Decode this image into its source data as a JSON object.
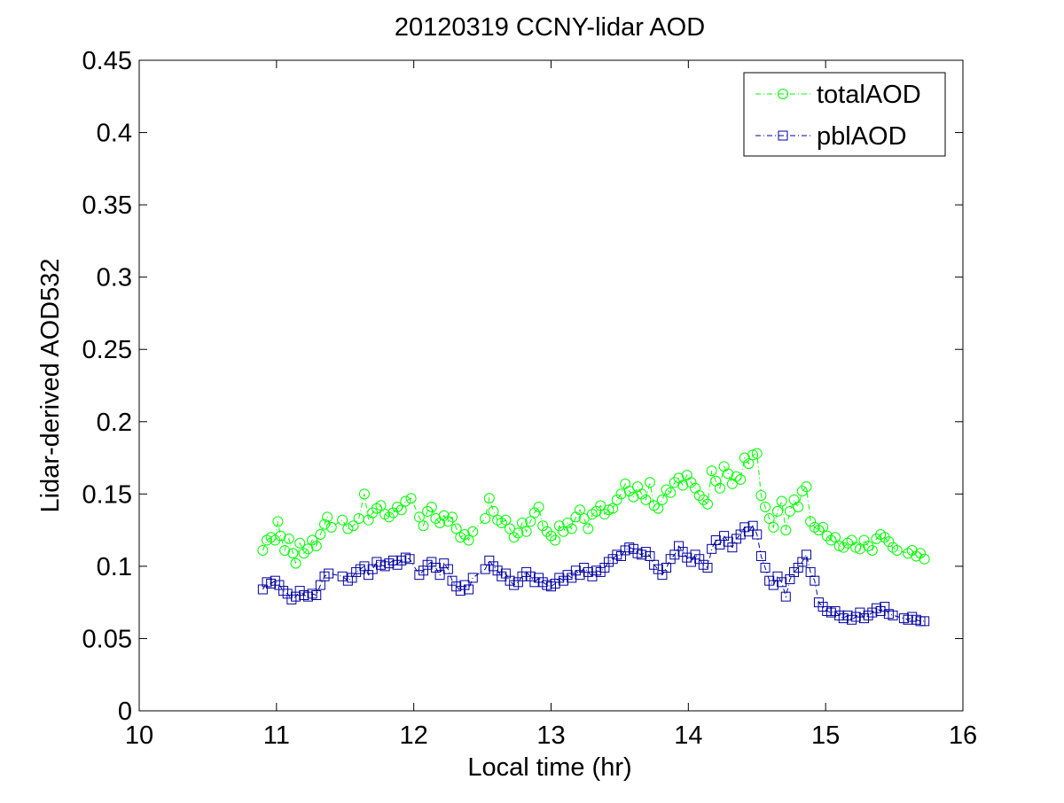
{
  "chart_data": {
    "type": "line",
    "title": "20120319 CCNY-lidar AOD",
    "xlabel": "Local time (hr)",
    "ylabel": "Lidar-derived AOD532",
    "xlim": [
      10,
      16
    ],
    "ylim": [
      0,
      0.45
    ],
    "xticks": [
      "10",
      "11",
      "12",
      "13",
      "14",
      "15",
      "16"
    ],
    "yticks": [
      "0",
      "0.05",
      "0.1",
      "0.15",
      "0.2",
      "0.25",
      "0.3",
      "0.35",
      "0.4",
      "0.45"
    ],
    "grid": false,
    "legend_position": "top-right",
    "series": [
      {
        "name": "totalAOD",
        "color": "#00ff00",
        "marker": "circle",
        "line_style": "dash-dot",
        "points": [
          [
            10.9,
            0.111
          ],
          [
            10.93,
            0.118
          ],
          [
            10.96,
            0.12
          ],
          [
            10.99,
            0.118
          ],
          [
            11.01,
            0.131
          ],
          [
            11.03,
            0.121
          ],
          [
            11.06,
            0.111
          ],
          [
            11.09,
            0.119
          ],
          [
            11.12,
            0.109
          ],
          [
            11.14,
            0.102
          ],
          [
            11.17,
            0.116
          ],
          [
            11.2,
            0.109
          ],
          [
            11.23,
            0.112
          ],
          [
            11.26,
            0.118
          ],
          [
            11.29,
            0.114
          ],
          [
            11.32,
            0.122
          ],
          [
            11.35,
            0.129
          ],
          [
            11.37,
            0.134
          ],
          [
            11.4,
            0.127
          ],
          [
            11.48,
            0.132
          ],
          [
            11.52,
            0.126
          ],
          [
            11.56,
            0.128
          ],
          [
            11.6,
            0.133
          ],
          [
            11.64,
            0.15
          ],
          [
            11.67,
            0.132
          ],
          [
            11.7,
            0.137
          ],
          [
            11.73,
            0.14
          ],
          [
            11.76,
            0.142
          ],
          [
            11.79,
            0.136
          ],
          [
            11.82,
            0.134
          ],
          [
            11.85,
            0.137
          ],
          [
            11.88,
            0.141
          ],
          [
            11.91,
            0.139
          ],
          [
            11.94,
            0.145
          ],
          [
            11.98,
            0.147
          ],
          [
            12.04,
            0.134
          ],
          [
            12.07,
            0.128
          ],
          [
            12.1,
            0.138
          ],
          [
            12.13,
            0.141
          ],
          [
            12.16,
            0.133
          ],
          [
            12.19,
            0.13
          ],
          [
            12.22,
            0.135
          ],
          [
            12.25,
            0.131
          ],
          [
            12.28,
            0.134
          ],
          [
            12.31,
            0.126
          ],
          [
            12.34,
            0.12
          ],
          [
            12.37,
            0.122
          ],
          [
            12.4,
            0.118
          ],
          [
            12.43,
            0.124
          ],
          [
            12.52,
            0.133
          ],
          [
            12.55,
            0.147
          ],
          [
            12.58,
            0.138
          ],
          [
            12.61,
            0.132
          ],
          [
            12.64,
            0.13
          ],
          [
            12.67,
            0.132
          ],
          [
            12.7,
            0.126
          ],
          [
            12.73,
            0.12
          ],
          [
            12.76,
            0.123
          ],
          [
            12.79,
            0.13
          ],
          [
            12.82,
            0.124
          ],
          [
            12.85,
            0.131
          ],
          [
            12.88,
            0.137
          ],
          [
            12.91,
            0.141
          ],
          [
            12.94,
            0.128
          ],
          [
            12.97,
            0.124
          ],
          [
            13.0,
            0.121
          ],
          [
            13.03,
            0.118
          ],
          [
            13.06,
            0.128
          ],
          [
            13.09,
            0.124
          ],
          [
            13.12,
            0.13
          ],
          [
            13.15,
            0.126
          ],
          [
            13.18,
            0.134
          ],
          [
            13.21,
            0.139
          ],
          [
            13.24,
            0.133
          ],
          [
            13.27,
            0.126
          ],
          [
            13.3,
            0.136
          ],
          [
            13.33,
            0.138
          ],
          [
            13.36,
            0.142
          ],
          [
            13.39,
            0.136
          ],
          [
            13.42,
            0.139
          ],
          [
            13.45,
            0.14
          ],
          [
            13.48,
            0.146
          ],
          [
            13.51,
            0.15
          ],
          [
            13.54,
            0.157
          ],
          [
            13.57,
            0.152
          ],
          [
            13.6,
            0.148
          ],
          [
            13.63,
            0.155
          ],
          [
            13.66,
            0.15
          ],
          [
            13.69,
            0.146
          ],
          [
            13.72,
            0.158
          ],
          [
            13.75,
            0.142
          ],
          [
            13.78,
            0.14
          ],
          [
            13.81,
            0.146
          ],
          [
            13.84,
            0.153
          ],
          [
            13.87,
            0.151
          ],
          [
            13.9,
            0.158
          ],
          [
            13.93,
            0.161
          ],
          [
            13.96,
            0.156
          ],
          [
            13.99,
            0.163
          ],
          [
            14.02,
            0.158
          ],
          [
            14.05,
            0.154
          ],
          [
            14.08,
            0.149
          ],
          [
            14.11,
            0.146
          ],
          [
            14.14,
            0.143
          ],
          [
            14.17,
            0.166
          ],
          [
            14.2,
            0.159
          ],
          [
            14.23,
            0.154
          ],
          [
            14.26,
            0.169
          ],
          [
            14.29,
            0.164
          ],
          [
            14.32,
            0.157
          ],
          [
            14.35,
            0.162
          ],
          [
            14.38,
            0.16
          ],
          [
            14.41,
            0.175
          ],
          [
            14.44,
            0.171
          ],
          [
            14.47,
            0.177
          ],
          [
            14.5,
            0.178
          ],
          [
            14.53,
            0.149
          ],
          [
            14.56,
            0.141
          ],
          [
            14.59,
            0.133
          ],
          [
            14.62,
            0.127
          ],
          [
            14.65,
            0.138
          ],
          [
            14.68,
            0.145
          ],
          [
            14.71,
            0.125
          ],
          [
            14.74,
            0.138
          ],
          [
            14.77,
            0.146
          ],
          [
            14.8,
            0.141
          ],
          [
            14.83,
            0.152
          ],
          [
            14.86,
            0.155
          ],
          [
            14.89,
            0.131
          ],
          [
            14.92,
            0.127
          ],
          [
            14.95,
            0.125
          ],
          [
            14.98,
            0.127
          ],
          [
            15.01,
            0.121
          ],
          [
            15.04,
            0.118
          ],
          [
            15.07,
            0.12
          ],
          [
            15.1,
            0.114
          ],
          [
            15.13,
            0.113
          ],
          [
            15.16,
            0.116
          ],
          [
            15.19,
            0.118
          ],
          [
            15.22,
            0.113
          ],
          [
            15.25,
            0.112
          ],
          [
            15.28,
            0.118
          ],
          [
            15.31,
            0.114
          ],
          [
            15.34,
            0.111
          ],
          [
            15.37,
            0.119
          ],
          [
            15.4,
            0.122
          ],
          [
            15.43,
            0.12
          ],
          [
            15.46,
            0.117
          ],
          [
            15.49,
            0.113
          ],
          [
            15.52,
            0.111
          ],
          [
            15.6,
            0.109
          ],
          [
            15.63,
            0.111
          ],
          [
            15.66,
            0.107
          ],
          [
            15.69,
            0.109
          ],
          [
            15.72,
            0.105
          ]
        ]
      },
      {
        "name": "pblAOD",
        "color": "#0000a0",
        "marker": "square",
        "line_style": "dash-dot",
        "points": [
          [
            10.9,
            0.084
          ],
          [
            10.93,
            0.089
          ],
          [
            10.96,
            0.088
          ],
          [
            10.99,
            0.09
          ],
          [
            11.02,
            0.087
          ],
          [
            11.05,
            0.083
          ],
          [
            11.08,
            0.081
          ],
          [
            11.11,
            0.077
          ],
          [
            11.14,
            0.079
          ],
          [
            11.17,
            0.083
          ],
          [
            11.2,
            0.08
          ],
          [
            11.23,
            0.079
          ],
          [
            11.26,
            0.081
          ],
          [
            11.29,
            0.08
          ],
          [
            11.32,
            0.087
          ],
          [
            11.35,
            0.093
          ],
          [
            11.38,
            0.095
          ],
          [
            11.48,
            0.093
          ],
          [
            11.52,
            0.09
          ],
          [
            11.55,
            0.092
          ],
          [
            11.58,
            0.096
          ],
          [
            11.61,
            0.098
          ],
          [
            11.64,
            0.1
          ],
          [
            11.67,
            0.094
          ],
          [
            11.7,
            0.098
          ],
          [
            11.73,
            0.103
          ],
          [
            11.76,
            0.101
          ],
          [
            11.79,
            0.1
          ],
          [
            11.82,
            0.102
          ],
          [
            11.85,
            0.104
          ],
          [
            11.88,
            0.101
          ],
          [
            11.91,
            0.104
          ],
          [
            11.94,
            0.106
          ],
          [
            11.97,
            0.105
          ],
          [
            12.04,
            0.094
          ],
          [
            12.07,
            0.097
          ],
          [
            12.1,
            0.101
          ],
          [
            12.13,
            0.103
          ],
          [
            12.16,
            0.099
          ],
          [
            12.19,
            0.094
          ],
          [
            12.22,
            0.102
          ],
          [
            12.25,
            0.098
          ],
          [
            12.28,
            0.09
          ],
          [
            12.31,
            0.086
          ],
          [
            12.34,
            0.083
          ],
          [
            12.37,
            0.087
          ],
          [
            12.4,
            0.084
          ],
          [
            12.43,
            0.092
          ],
          [
            12.52,
            0.098
          ],
          [
            12.55,
            0.104
          ],
          [
            12.58,
            0.1
          ],
          [
            12.61,
            0.097
          ],
          [
            12.64,
            0.093
          ],
          [
            12.67,
            0.095
          ],
          [
            12.7,
            0.09
          ],
          [
            12.73,
            0.087
          ],
          [
            12.76,
            0.089
          ],
          [
            12.79,
            0.093
          ],
          [
            12.82,
            0.096
          ],
          [
            12.85,
            0.093
          ],
          [
            12.88,
            0.089
          ],
          [
            12.91,
            0.092
          ],
          [
            12.94,
            0.089
          ],
          [
            12.97,
            0.087
          ],
          [
            13.0,
            0.086
          ],
          [
            13.03,
            0.088
          ],
          [
            13.06,
            0.092
          ],
          [
            13.09,
            0.09
          ],
          [
            13.12,
            0.094
          ],
          [
            13.15,
            0.092
          ],
          [
            13.18,
            0.097
          ],
          [
            13.21,
            0.094
          ],
          [
            13.24,
            0.099
          ],
          [
            13.27,
            0.096
          ],
          [
            13.3,
            0.093
          ],
          [
            13.33,
            0.097
          ],
          [
            13.36,
            0.096
          ],
          [
            13.39,
            0.099
          ],
          [
            13.42,
            0.103
          ],
          [
            13.45,
            0.105
          ],
          [
            13.48,
            0.108
          ],
          [
            13.51,
            0.107
          ],
          [
            13.54,
            0.111
          ],
          [
            13.57,
            0.113
          ],
          [
            13.6,
            0.112
          ],
          [
            13.63,
            0.109
          ],
          [
            13.66,
            0.108
          ],
          [
            13.69,
            0.11
          ],
          [
            13.72,
            0.107
          ],
          [
            13.75,
            0.101
          ],
          [
            13.78,
            0.098
          ],
          [
            13.81,
            0.094
          ],
          [
            13.84,
            0.099
          ],
          [
            13.87,
            0.105
          ],
          [
            13.9,
            0.108
          ],
          [
            13.93,
            0.114
          ],
          [
            13.96,
            0.11
          ],
          [
            13.99,
            0.106
          ],
          [
            14.02,
            0.103
          ],
          [
            14.05,
            0.108
          ],
          [
            14.08,
            0.105
          ],
          [
            14.11,
            0.101
          ],
          [
            14.14,
            0.099
          ],
          [
            14.17,
            0.112
          ],
          [
            14.2,
            0.118
          ],
          [
            14.23,
            0.115
          ],
          [
            14.26,
            0.121
          ],
          [
            14.29,
            0.117
          ],
          [
            14.32,
            0.113
          ],
          [
            14.35,
            0.119
          ],
          [
            14.38,
            0.122
          ],
          [
            14.41,
            0.127
          ],
          [
            14.44,
            0.124
          ],
          [
            14.47,
            0.128
          ],
          [
            14.5,
            0.122
          ],
          [
            14.53,
            0.107
          ],
          [
            14.56,
            0.099
          ],
          [
            14.59,
            0.09
          ],
          [
            14.62,
            0.087
          ],
          [
            14.65,
            0.093
          ],
          [
            14.68,
            0.089
          ],
          [
            14.71,
            0.079
          ],
          [
            14.74,
            0.091
          ],
          [
            14.77,
            0.096
          ],
          [
            14.8,
            0.099
          ],
          [
            14.83,
            0.103
          ],
          [
            14.86,
            0.108
          ],
          [
            14.89,
            0.096
          ],
          [
            14.92,
            0.09
          ],
          [
            14.95,
            0.075
          ],
          [
            14.98,
            0.072
          ],
          [
            15.01,
            0.069
          ],
          [
            15.04,
            0.068
          ],
          [
            15.07,
            0.069
          ],
          [
            15.1,
            0.066
          ],
          [
            15.13,
            0.064
          ],
          [
            15.16,
            0.066
          ],
          [
            15.19,
            0.063
          ],
          [
            15.22,
            0.065
          ],
          [
            15.25,
            0.068
          ],
          [
            15.28,
            0.064
          ],
          [
            15.31,
            0.066
          ],
          [
            15.34,
            0.068
          ],
          [
            15.37,
            0.071
          ],
          [
            15.4,
            0.069
          ],
          [
            15.43,
            0.072
          ],
          [
            15.46,
            0.067
          ],
          [
            15.49,
            0.066
          ],
          [
            15.57,
            0.064
          ],
          [
            15.6,
            0.063
          ],
          [
            15.63,
            0.065
          ],
          [
            15.66,
            0.063
          ],
          [
            15.69,
            0.062
          ],
          [
            15.72,
            0.062
          ]
        ]
      }
    ]
  }
}
